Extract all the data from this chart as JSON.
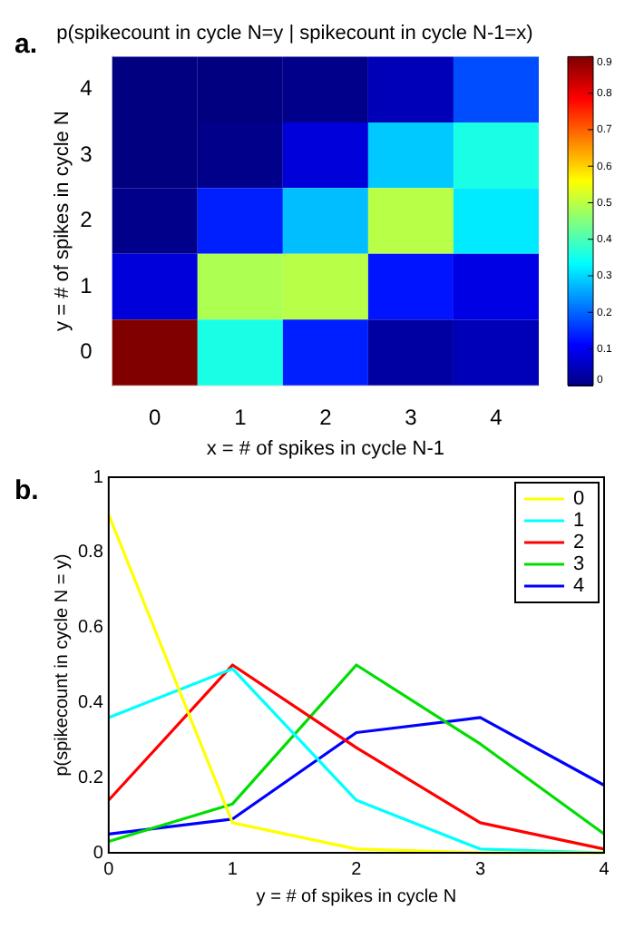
{
  "chart_data": [
    {
      "type": "heatmap",
      "title": "p(spikecount in cycle N=y | spikecount in cycle N-1=x)",
      "xlabel": "x = # of spikes in cycle N-1",
      "ylabel": "y = # of spikes in cycle N",
      "categories": [
        "0",
        "1",
        "2",
        "3",
        "4"
      ],
      "y_categories": [
        "4",
        "3",
        "2",
        "1",
        "0"
      ],
      "cells": [
        [
          0,
          0,
          0.01,
          0.05,
          0.18
        ],
        [
          0,
          0.01,
          0.08,
          0.29,
          0.36
        ],
        [
          0.01,
          0.14,
          0.28,
          0.5,
          0.32
        ],
        [
          0.08,
          0.49,
          0.5,
          0.13,
          0.09
        ],
        [
          0.9,
          0.36,
          0.14,
          0.03,
          0.05
        ]
      ],
      "clim": [
        0,
        0.9
      ],
      "cticks": [
        0,
        0.1,
        0.2,
        0.3,
        0.4,
        0.5,
        0.6,
        0.7,
        0.8,
        0.9
      ],
      "annotations": [
        "a."
      ]
    },
    {
      "type": "line",
      "xlabel": "y = # of spikes in cycle N",
      "ylabel": "p(spikecount in cycle N = y)",
      "x": [
        0,
        1,
        2,
        3,
        4
      ],
      "xlim": [
        0,
        4
      ],
      "xticks": [
        0,
        1,
        2,
        3,
        4
      ],
      "ylim": [
        0,
        1
      ],
      "yticks": [
        0,
        0.2,
        0.4,
        0.6,
        0.8,
        1
      ],
      "legend": "top right",
      "grid": false,
      "marker": "none",
      "line_style": "solid",
      "annotations": [
        "b."
      ],
      "series": [
        {
          "name": "0",
          "color": "#ffff00",
          "values": [
            0.9,
            0.08,
            0.01,
            0,
            0
          ]
        },
        {
          "name": "1",
          "color": "#00ffff",
          "values": [
            0.36,
            0.49,
            0.14,
            0.01,
            0
          ]
        },
        {
          "name": "2",
          "color": "#ff0000",
          "values": [
            0.14,
            0.5,
            0.28,
            0.08,
            0.01
          ]
        },
        {
          "name": "3",
          "color": "#00dd00",
          "values": [
            0.03,
            0.13,
            0.5,
            0.29,
            0.05
          ]
        },
        {
          "name": "4",
          "color": "#0000ff",
          "values": [
            0.05,
            0.09,
            0.32,
            0.36,
            0.18
          ]
        }
      ]
    }
  ]
}
